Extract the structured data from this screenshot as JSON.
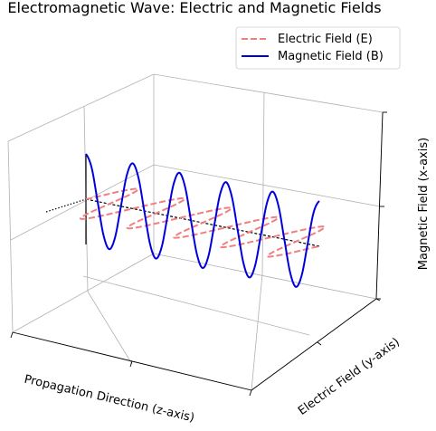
{
  "chart_data": {
    "type": "line",
    "projection": "3d",
    "title": "Electromagnetic Wave: Electric and Magnetic Fields",
    "xlabel": "Propagation Direction (z-axis)",
    "ylabel": "Electric Field (y-axis)",
    "zlabel": "Magnetic Field (x-axis)",
    "grid": true,
    "legend": "top-right",
    "series": [
      {
        "name": "Electric Field (E)",
        "color": "#f08080",
        "linestyle": "dashed",
        "z": [
          0,
          0.5,
          1,
          1.5,
          2,
          2.5,
          3,
          3.5,
          4,
          4.5,
          5,
          5.5,
          6,
          6.5,
          7,
          7.5,
          8,
          8.5,
          9,
          9.5,
          10,
          10.5,
          11,
          11.5,
          12,
          12.5,
          13,
          13.5,
          14,
          14.5,
          15,
          15.5,
          16,
          16.5,
          17,
          17.5,
          18,
          18.5,
          19,
          19.5,
          20
        ],
        "e": [
          0,
          0.71,
          1,
          0.71,
          0,
          -0.71,
          -1,
          -0.71,
          0,
          0.71,
          1,
          0.71,
          0,
          -0.71,
          -1,
          -0.71,
          0,
          0.71,
          1,
          0.71,
          0,
          -0.71,
          -1,
          -0.71,
          0,
          0.71,
          1,
          0.71,
          0,
          -0.71,
          -1,
          -0.71,
          0,
          0.71,
          1,
          0.71,
          0,
          -0.71,
          -1,
          -0.71,
          0
        ],
        "b": [
          0,
          0,
          0,
          0,
          0,
          0,
          0,
          0,
          0,
          0,
          0,
          0,
          0,
          0,
          0,
          0,
          0,
          0,
          0,
          0,
          0,
          0,
          0,
          0,
          0,
          0,
          0,
          0,
          0,
          0,
          0,
          0,
          0,
          0,
          0,
          0,
          0,
          0,
          0,
          0,
          0
        ]
      },
      {
        "name": "Magnetic Field (B)",
        "color": "#0000dd",
        "linestyle": "solid",
        "z": [
          0,
          0.5,
          1,
          1.5,
          2,
          2.5,
          3,
          3.5,
          4,
          4.5,
          5,
          5.5,
          6,
          6.5,
          7,
          7.5,
          8,
          8.5,
          9,
          9.5,
          10,
          10.5,
          11,
          11.5,
          12,
          12.5,
          13,
          13.5,
          14,
          14.5,
          15,
          15.5,
          16,
          16.5,
          17,
          17.5,
          18,
          18.5,
          19,
          19.5,
          20
        ],
        "e": [
          0,
          0,
          0,
          0,
          0,
          0,
          0,
          0,
          0,
          0,
          0,
          0,
          0,
          0,
          0,
          0,
          0,
          0,
          0,
          0,
          0,
          0,
          0,
          0,
          0,
          0,
          0,
          0,
          0,
          0,
          0,
          0,
          0,
          0,
          0,
          0,
          0,
          0,
          0,
          0,
          0
        ],
        "b": [
          1,
          0.71,
          0,
          -0.71,
          -1,
          -0.71,
          0,
          0.71,
          1,
          0.71,
          0,
          -0.71,
          -1,
          -0.71,
          0,
          0.71,
          1,
          0.71,
          0,
          -0.71,
          -1,
          -0.71,
          0,
          0.71,
          1,
          0.71,
          0,
          -0.71,
          -1,
          -0.71,
          0,
          0.71,
          1,
          0.71,
          0,
          -0.71,
          -1,
          -0.71,
          0,
          0.71,
          1
        ]
      }
    ],
    "reference_lines": [
      {
        "color": "#000000",
        "linestyle": "dashed",
        "description": "propagation axis"
      },
      {
        "color": "#000000",
        "linestyle": "solid",
        "description": "field reference at origin"
      }
    ]
  }
}
